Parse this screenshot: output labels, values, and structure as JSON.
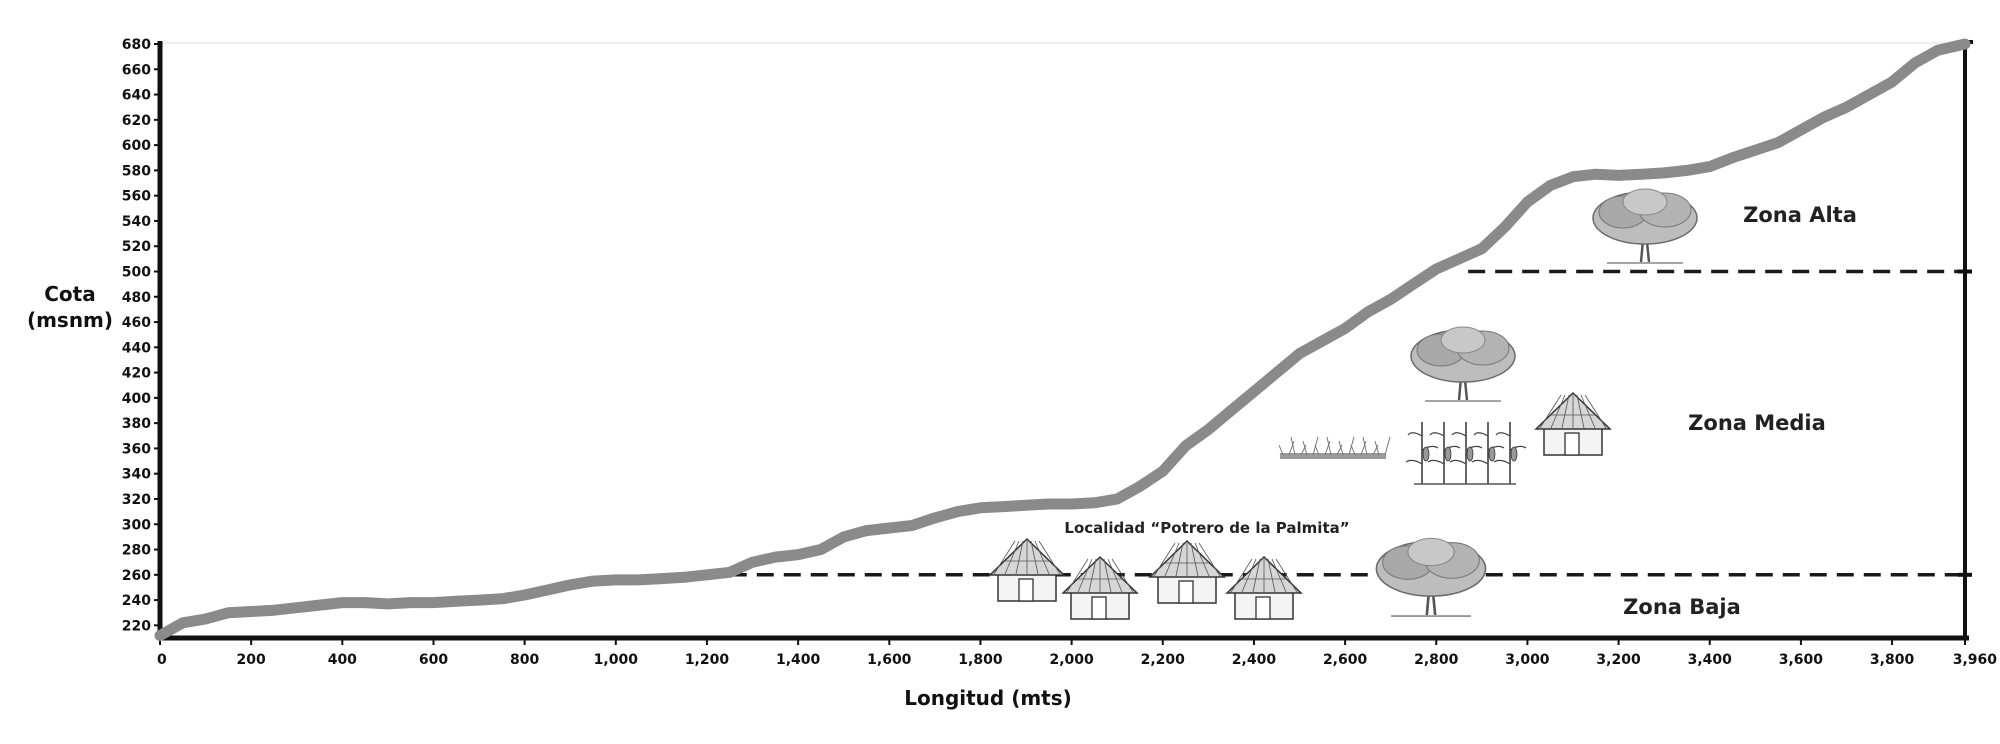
{
  "chart_data": {
    "type": "line",
    "xlabel": "Longitud (mts)",
    "ylabel": [
      "Cota",
      "(msnm)"
    ],
    "xlim": [
      0,
      3960
    ],
    "ylim": [
      210,
      680
    ],
    "xticks": [
      0,
      200,
      400,
      600,
      800,
      1000,
      1200,
      1400,
      1600,
      1800,
      2000,
      2200,
      2400,
      2600,
      2800,
      3000,
      3200,
      3400,
      3600,
      3800,
      3960
    ],
    "xtick_labels": [
      "0",
      "200",
      "400",
      "600",
      "800",
      "1,000",
      "1,200",
      "1,400",
      "1,600",
      "1,800",
      "2,000",
      "2,200",
      "2,400",
      "2,600",
      "2,800",
      "3,000",
      "3,200",
      "3,400",
      "3,600",
      "3,800",
      "3,960"
    ],
    "yticks": [
      220,
      240,
      260,
      280,
      300,
      320,
      340,
      360,
      380,
      400,
      420,
      440,
      460,
      480,
      500,
      520,
      540,
      560,
      580,
      600,
      620,
      640,
      660,
      680
    ],
    "grid": false,
    "line_color": "#8a8a8a",
    "series": [
      {
        "x": [
          0,
          50,
          100,
          150,
          200,
          250,
          300,
          350,
          400,
          450,
          500,
          550,
          600,
          650,
          700,
          750,
          800,
          850,
          900,
          950,
          1000,
          1050,
          1100,
          1150,
          1200,
          1250,
          1300,
          1350,
          1400,
          1450,
          1500,
          1550,
          1600,
          1650,
          1700,
          1750,
          1800,
          1850,
          1900,
          1950,
          2000,
          2050,
          2100,
          2150,
          2200,
          2250,
          2300,
          2350,
          2400,
          2450,
          2500,
          2550,
          2600,
          2650,
          2700,
          2750,
          2800,
          2850,
          2900,
          2950,
          3000,
          3050,
          3100,
          3150,
          3200,
          3250,
          3300,
          3350,
          3400,
          3450,
          3500,
          3550,
          3600,
          3650,
          3700,
          3750,
          3800,
          3850,
          3900,
          3960
        ],
        "y": [
          212,
          222,
          225,
          230,
          231,
          232,
          234,
          236,
          238,
          238,
          237,
          238,
          238,
          239,
          240,
          241,
          244,
          248,
          252,
          255,
          256,
          256,
          257,
          258,
          260,
          262,
          270,
          274,
          276,
          280,
          290,
          295,
          297,
          299,
          305,
          310,
          313,
          314,
          315,
          316,
          316,
          317,
          320,
          330,
          342,
          362,
          375,
          390,
          405,
          420,
          435,
          445,
          455,
          468,
          478,
          490,
          502,
          510,
          518,
          535,
          555,
          568,
          575,
          577,
          576,
          577,
          578,
          580,
          583,
          590,
          596,
          602,
          612,
          622,
          630,
          640,
          650,
          665,
          675,
          680
        ]
      }
    ],
    "zone_boundaries": [
      260,
      500
    ],
    "zone_labels": [
      "Zona Alta",
      "Zona Media",
      "Zona Baja"
    ],
    "annotations": [
      "Localidad “Potrero de la Palmita”"
    ]
  },
  "icons": [
    "tree-icon",
    "grass-icon",
    "corn-icon",
    "hut-icon"
  ]
}
